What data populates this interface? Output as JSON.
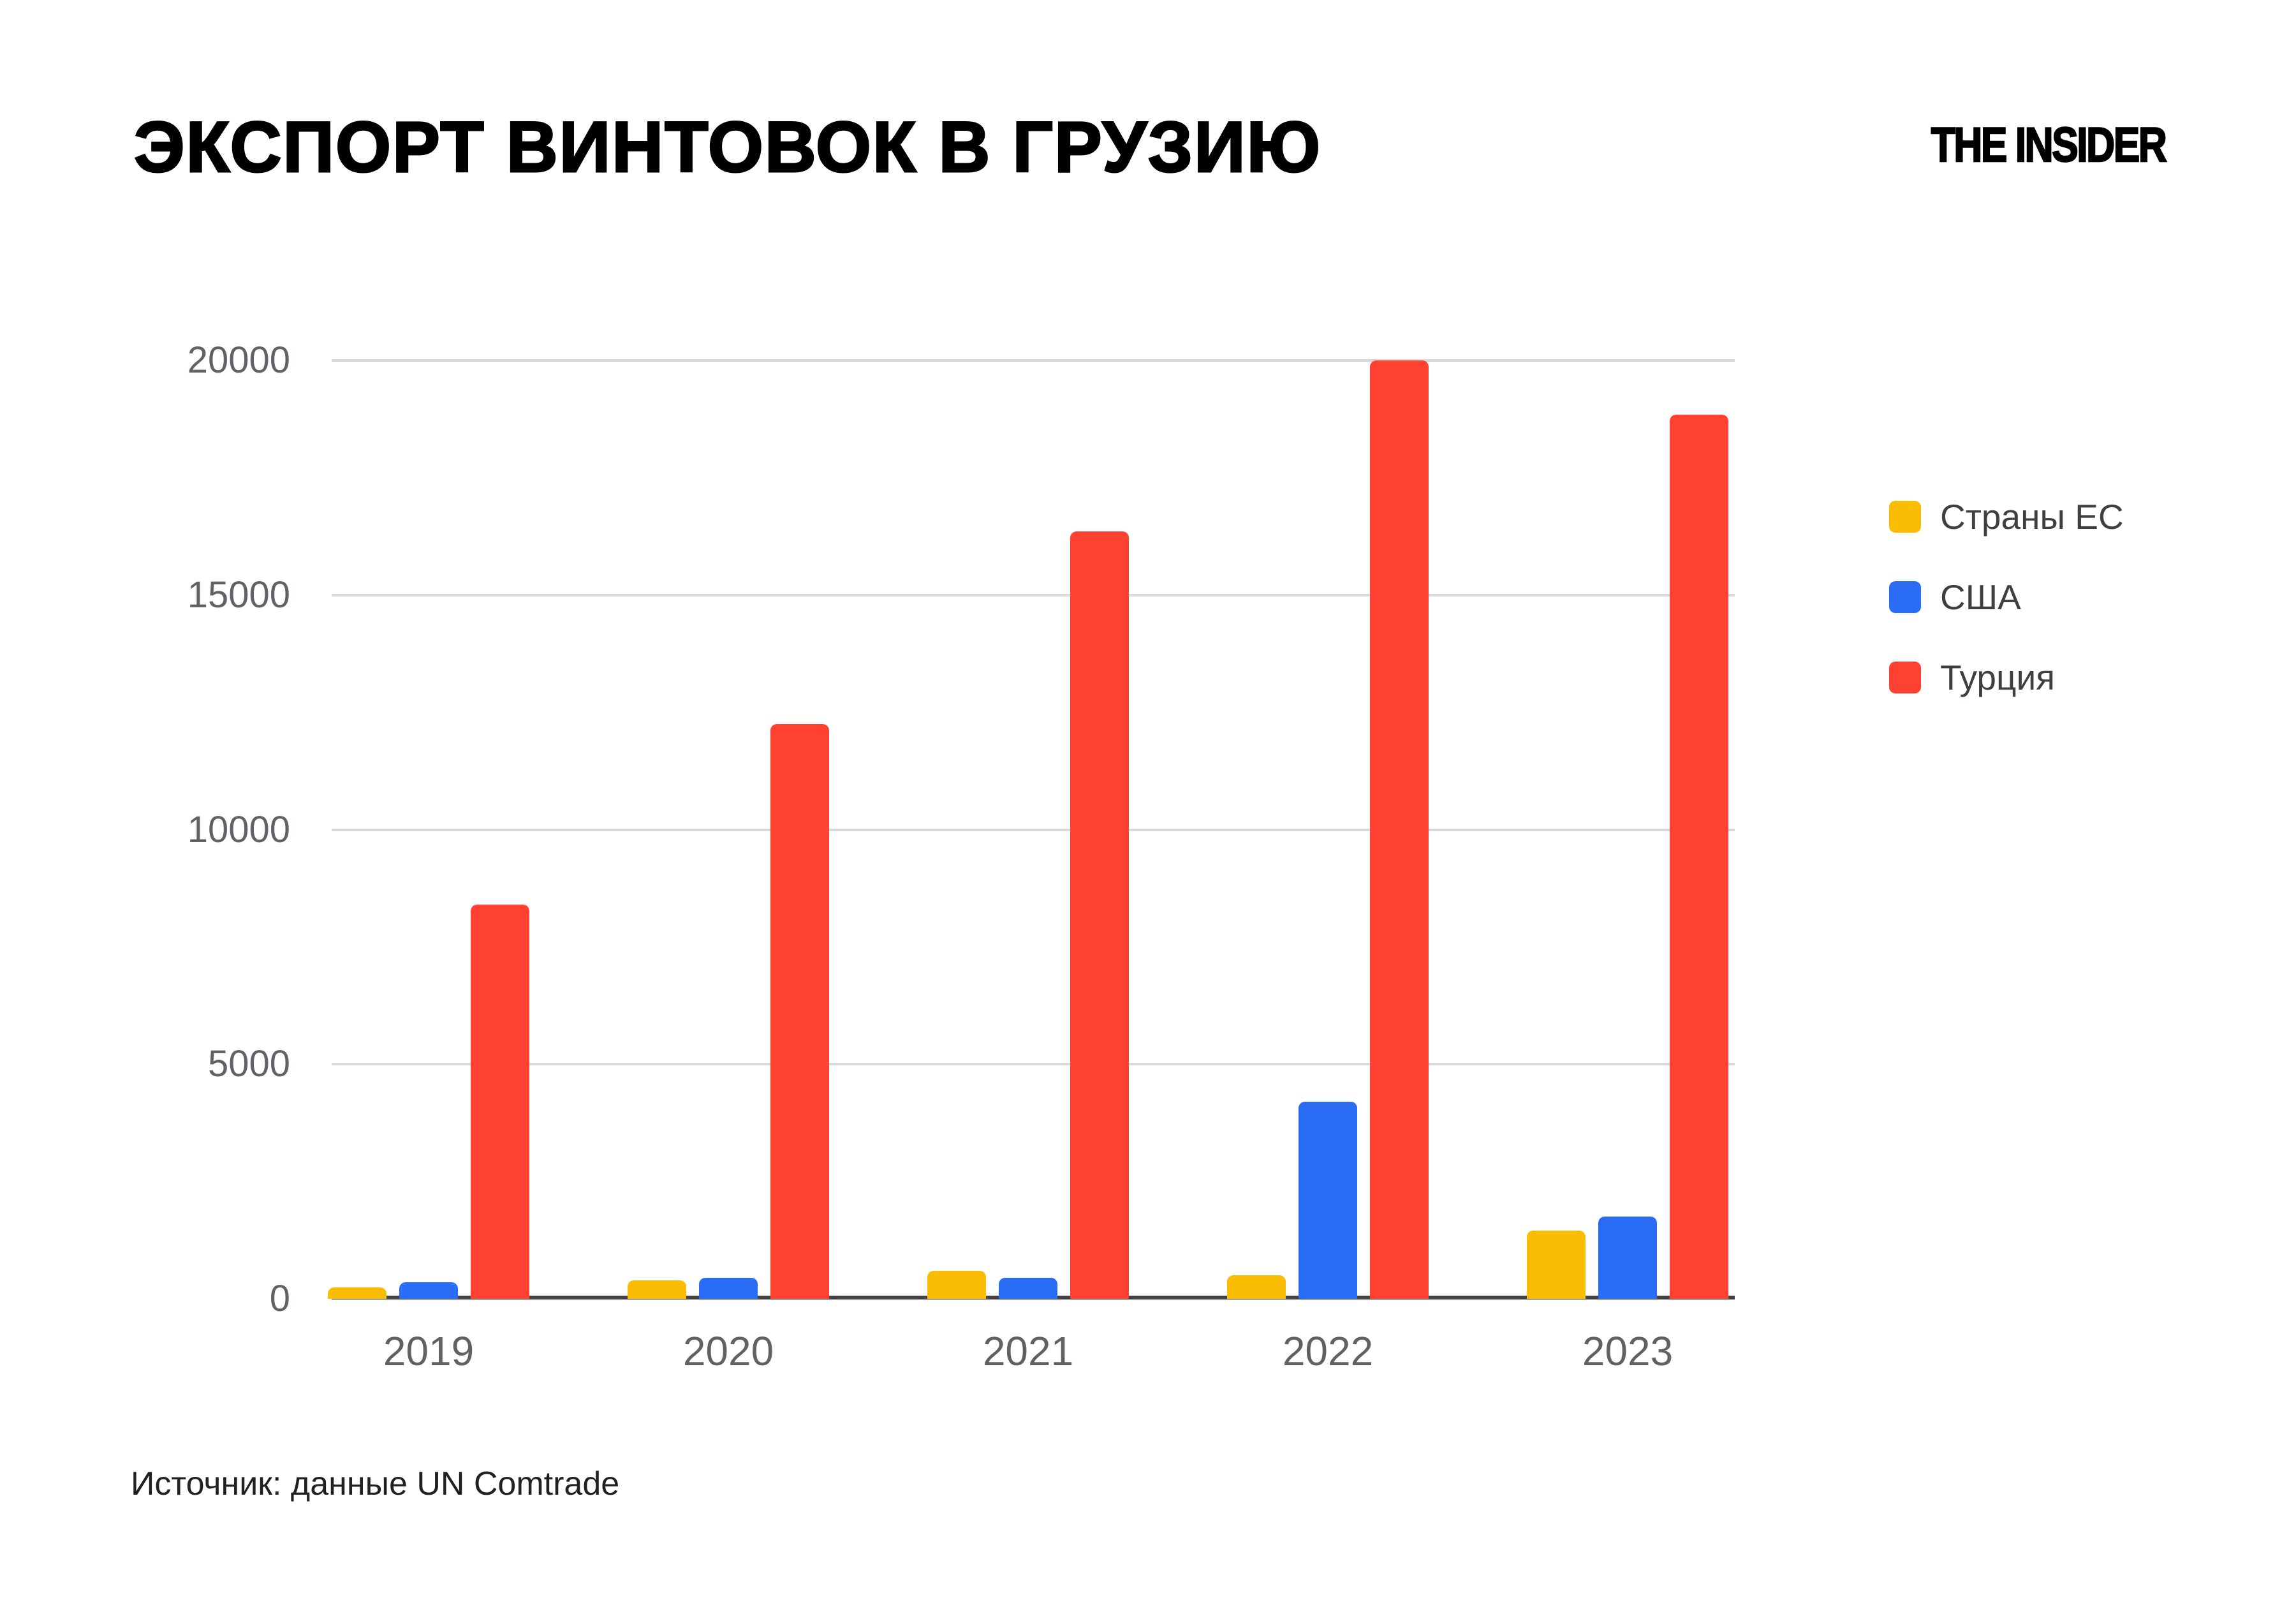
{
  "header": {
    "title": "ЭКСПОРТ ВИНТОВОК В ГРУЗИЮ",
    "logo": "THE INSIDER"
  },
  "source_note": "Источник: данные UN Comtrade",
  "chart_data": {
    "type": "bar",
    "title": "ЭКСПОРТ ВИНТОВОК В ГРУЗИЮ",
    "categories": [
      "2019",
      "2020",
      "2021",
      "2022",
      "2023"
    ],
    "series": [
      {
        "key": "eu",
        "name": "Страны ЕС",
        "color": "#FBBC04",
        "values": [
          250,
          400,
          600,
          500,
          1450
        ]
      },
      {
        "key": "usa",
        "name": "США",
        "color": "#2A6DF4",
        "values": [
          350,
          450,
          450,
          4200,
          1750
        ]
      },
      {
        "key": "turkey",
        "name": "Турция",
        "color": "#FF4132",
        "values": [
          8400,
          12250,
          16350,
          20000,
          18850
        ]
      }
    ],
    "xlabel": "",
    "ylabel": "",
    "ylim": [
      0,
      20000
    ],
    "y_ticks": [
      0,
      5000,
      10000,
      15000,
      20000
    ],
    "grid": true,
    "legend_position": "right",
    "colors": {
      "grid": "#d9d9d9",
      "axis": "#424242",
      "tick_text": "#5f6368",
      "legend_text": "#3c4043"
    }
  }
}
